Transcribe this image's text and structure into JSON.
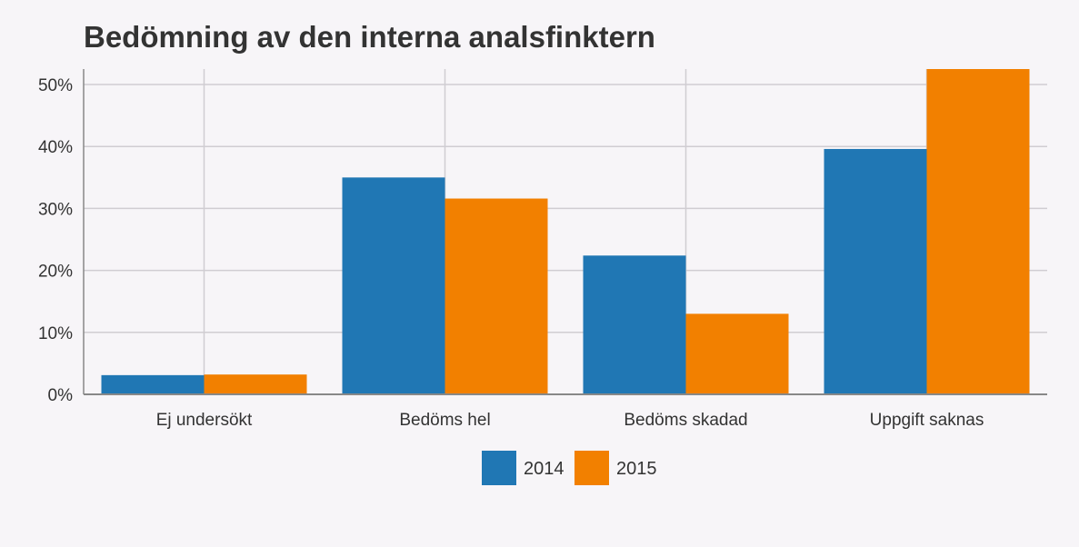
{
  "chart_data": {
    "type": "bar",
    "title": "Bedömning av den interna analsfinktern",
    "xlabel": "",
    "ylabel": "",
    "categories": [
      "Ej undersökt",
      "Bedöms hel",
      "Bedöms skadad",
      "Uppgift saknas"
    ],
    "series": [
      {
        "name": "2014",
        "values": [
          3.1,
          35.0,
          22.4,
          39.6
        ],
        "color": "#2077b4"
      },
      {
        "name": "2015",
        "values": [
          3.2,
          31.6,
          13.0,
          52.5
        ],
        "color": "#f28000"
      }
    ],
    "ylim": [
      0,
      52.5
    ],
    "yticks": [
      0,
      10,
      20,
      30,
      40,
      50
    ],
    "ytick_labels": [
      "0%",
      "10%",
      "20%",
      "30%",
      "40%",
      "50%"
    ],
    "grid": true,
    "legend_position": "bottom-center",
    "colors": {
      "background": "#f7f5f8",
      "grid": "#d0cdd2",
      "axis": "#888888",
      "text": "#333333"
    }
  }
}
